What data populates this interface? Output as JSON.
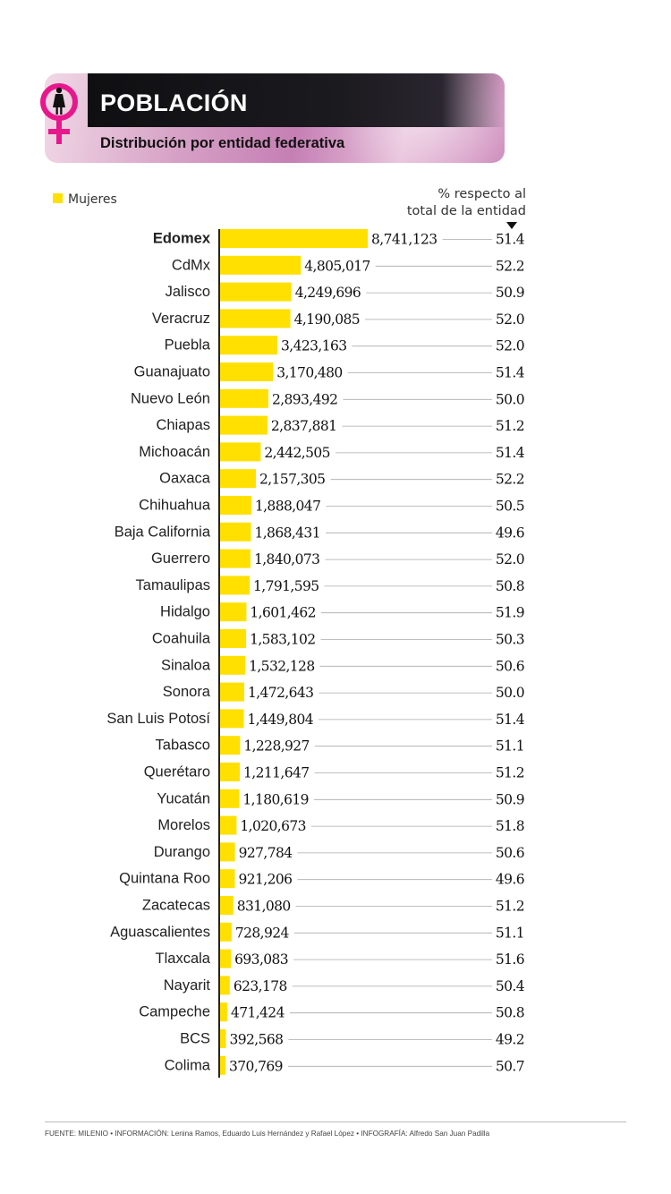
{
  "header": {
    "title": "POBLACIÓN",
    "subtitle": "Distribución por entidad federativa"
  },
  "legend": {
    "label": "Mujeres",
    "color": "#ffe000"
  },
  "pct_header": {
    "line1": "% respecto al",
    "line2": "total de la entidad"
  },
  "footer": "FUENTE: MILENIO • INFORMACIÓN: Lenina Ramos, Eduardo Luis Hernández y Rafael López • INFOGRAFÍA: Alfredo San Juan Padilla",
  "colors": {
    "bar": "#ffe000",
    "accent": "#e6188b",
    "banner_dark": "#151418"
  },
  "icons": [
    "venus-symbol-icon",
    "woman-icon",
    "arrow-down-icon"
  ],
  "chart_data": {
    "type": "bar",
    "orientation": "horizontal",
    "highlight": "Edomex",
    "categories": [
      "Edomex",
      "CdMx",
      "Jalisco",
      "Veracruz",
      "Puebla",
      "Guanajuato",
      "Nuevo León",
      "Chiapas",
      "Michoacán",
      "Oaxaca",
      "Chihuahua",
      "Baja California",
      "Guerrero",
      "Tamaulipas",
      "Hidalgo",
      "Coahuila",
      "Sinaloa",
      "Sonora",
      "San Luis Potosí",
      "Tabasco",
      "Querétaro",
      "Yucatán",
      "Morelos",
      "Durango",
      "Quintana Roo",
      "Zacatecas",
      "Aguascalientes",
      "Tlaxcala",
      "Nayarit",
      "Campeche",
      "BCS",
      "Colima"
    ],
    "series": [
      {
        "name": "Mujeres",
        "values": [
          8741123,
          4805017,
          4249696,
          4190085,
          3423163,
          3170480,
          2893492,
          2837881,
          2442505,
          2157305,
          1888047,
          1868431,
          1840073,
          1791595,
          1601462,
          1583102,
          1532128,
          1472643,
          1449804,
          1228927,
          1211647,
          1180619,
          1020673,
          927784,
          921206,
          831080,
          728924,
          693083,
          623178,
          471424,
          392568,
          370769
        ],
        "labels": [
          "8,741,123",
          "4,805,017",
          "4,249,696",
          "4,190,085",
          "3,423,163",
          "3,170,480",
          "2,893,492",
          "2,837,881",
          "2,442,505",
          "2,157,305",
          "1,888,047",
          "1,868,431",
          "1,840,073",
          "1,791,595",
          "1,601,462",
          "1,583,102",
          "1,532,128",
          "1,472,643",
          "1,449,804",
          "1,228,927",
          "1,211,647",
          "1,180,619",
          "1,020,673",
          "927,784",
          "921,206",
          "831,080",
          "728,924",
          "693,083",
          "623,178",
          "471,424",
          "392,568",
          "370,769"
        ]
      }
    ],
    "percent": [
      "51.4",
      "52.2",
      "50.9",
      "52.0",
      "52.0",
      "51.4",
      "50.0",
      "51.2",
      "51.4",
      "52.2",
      "50.5",
      "49.6",
      "52.0",
      "50.8",
      "51.9",
      "50.3",
      "50.6",
      "50.0",
      "51.4",
      "51.1",
      "51.2",
      "50.9",
      "51.8",
      "50.6",
      "49.6",
      "51.2",
      "51.1",
      "51.6",
      "50.4",
      "50.8",
      "49.2",
      "50.7"
    ],
    "xlim": [
      0,
      8741123
    ]
  }
}
